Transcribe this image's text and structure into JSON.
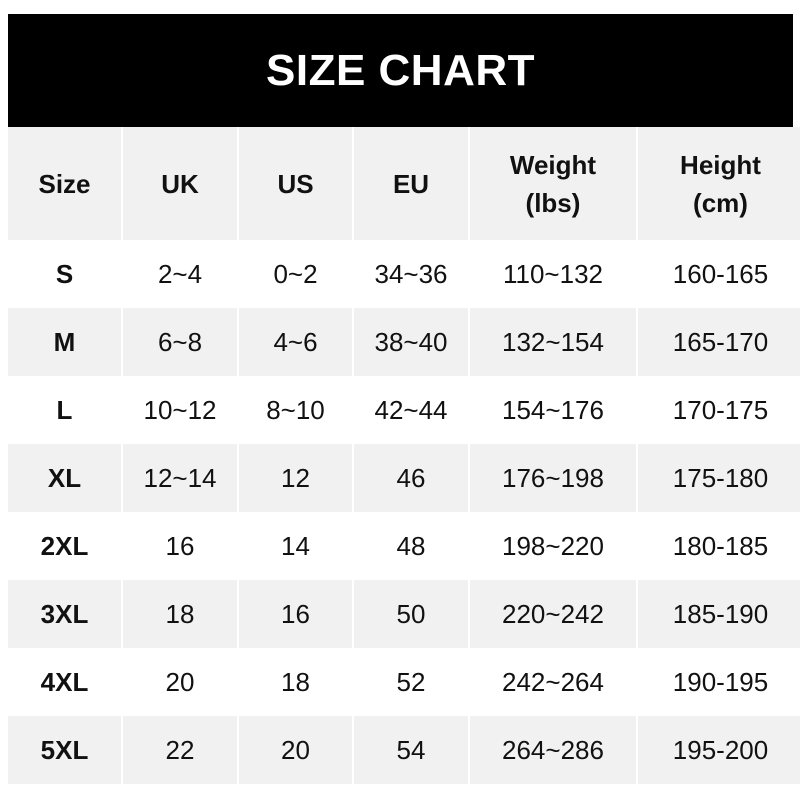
{
  "title": "SIZE CHART",
  "chart_data": {
    "type": "table",
    "title": "SIZE CHART",
    "columns": [
      "Size",
      "UK",
      "US",
      "EU",
      "Weight\n(lbs)",
      "Height\n(cm)"
    ],
    "rows": [
      [
        "S",
        "2~4",
        "0~2",
        "34~36",
        "110~132",
        "160-165"
      ],
      [
        "M",
        "6~8",
        "4~6",
        "38~40",
        "132~154",
        "165-170"
      ],
      [
        "L",
        "10~12",
        "8~10",
        "42~44",
        "154~176",
        "170-175"
      ],
      [
        "XL",
        "12~14",
        "12",
        "46",
        "176~198",
        "175-180"
      ],
      [
        "2XL",
        "16",
        "14",
        "48",
        "198~220",
        "180-185"
      ],
      [
        "3XL",
        "18",
        "16",
        "50",
        "220~242",
        "185-190"
      ],
      [
        "4XL",
        "20",
        "18",
        "52",
        "242~264",
        "190-195"
      ],
      [
        "5XL",
        "22",
        "20",
        "54",
        "264~286",
        "195-200"
      ]
    ]
  },
  "colors": {
    "header_bg": "#000000",
    "header_text": "#ffffff",
    "stripe": "#f1f1f1",
    "row": "#ffffff",
    "text": "#111111"
  }
}
